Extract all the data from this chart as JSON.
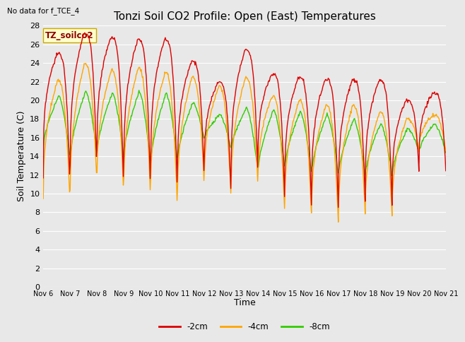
{
  "title": "Tonzi Soil CO2 Profile: Open (East) Temperatures",
  "subtitle": "No data for f_TCE_4",
  "ylabel": "Soil Temperature (C)",
  "xlabel": "Time",
  "legend_label": "TZ_soilco2",
  "series_labels": [
    "-2cm",
    "-4cm",
    "-8cm"
  ],
  "series_colors": [
    "#dd0000",
    "#ffa500",
    "#33cc00"
  ],
  "ylim": [
    0,
    28
  ],
  "yticks": [
    0,
    2,
    4,
    6,
    8,
    10,
    12,
    14,
    16,
    18,
    20,
    22,
    24,
    26,
    28
  ],
  "x_tick_labels": [
    "Nov 6",
    "Nov 7",
    "Nov 8",
    "Nov 9",
    "Nov 10",
    "Nov 11",
    "Nov 12",
    "Nov 13",
    "Nov 14",
    "Nov 15",
    "Nov 16",
    "Nov 17",
    "Nov 18",
    "Nov 19",
    "Nov 20",
    "Nov 21"
  ],
  "n_days": 15,
  "background_color": "#e8e8e8",
  "plot_bg_color": "#e8e8e8",
  "grid_color": "#ffffff",
  "title_fontsize": 11,
  "axis_fontsize": 9,
  "tick_fontsize": 8,
  "figwidth": 6.4,
  "figheight": 4.8,
  "dpi": 100
}
